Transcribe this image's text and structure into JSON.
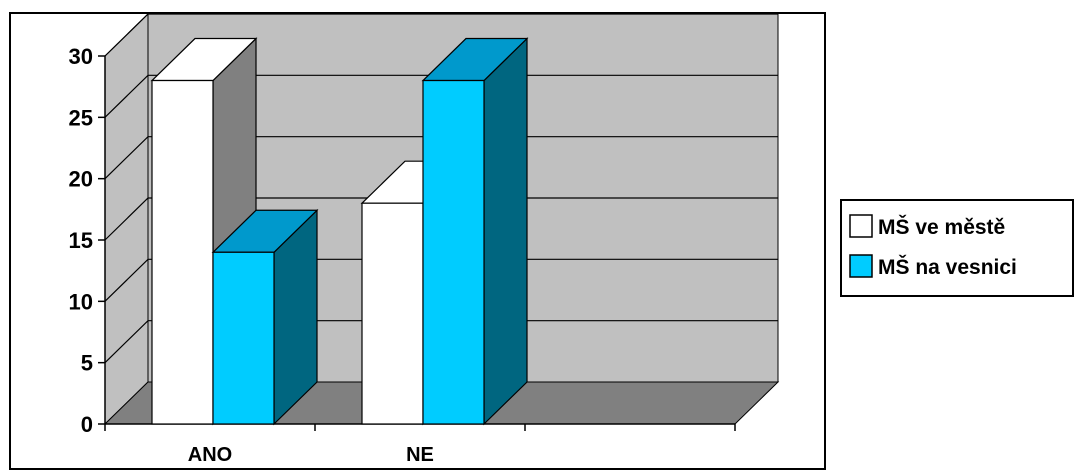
{
  "chart_data": {
    "type": "bar",
    "style": "3d-clustered-column",
    "categories": [
      "ANO",
      "NE",
      ""
    ],
    "series": [
      {
        "name": "MŠ ve městě",
        "values": [
          28,
          18,
          null
        ],
        "color": "#ffffff"
      },
      {
        "name": "MŠ na vesnici",
        "values": [
          14,
          28,
          null
        ],
        "color": "#00ccff"
      }
    ],
    "ylim": [
      0,
      30
    ],
    "yticks": [
      0,
      5,
      10,
      15,
      20,
      25,
      30
    ],
    "grid": true,
    "legend": "right",
    "colors": {
      "wall": "#c0c0c0",
      "floor": "#808080",
      "white_top": "#ffffff",
      "white_side": "#808080",
      "cyan_top": "#0099cc",
      "cyan_side": "#006680"
    }
  }
}
